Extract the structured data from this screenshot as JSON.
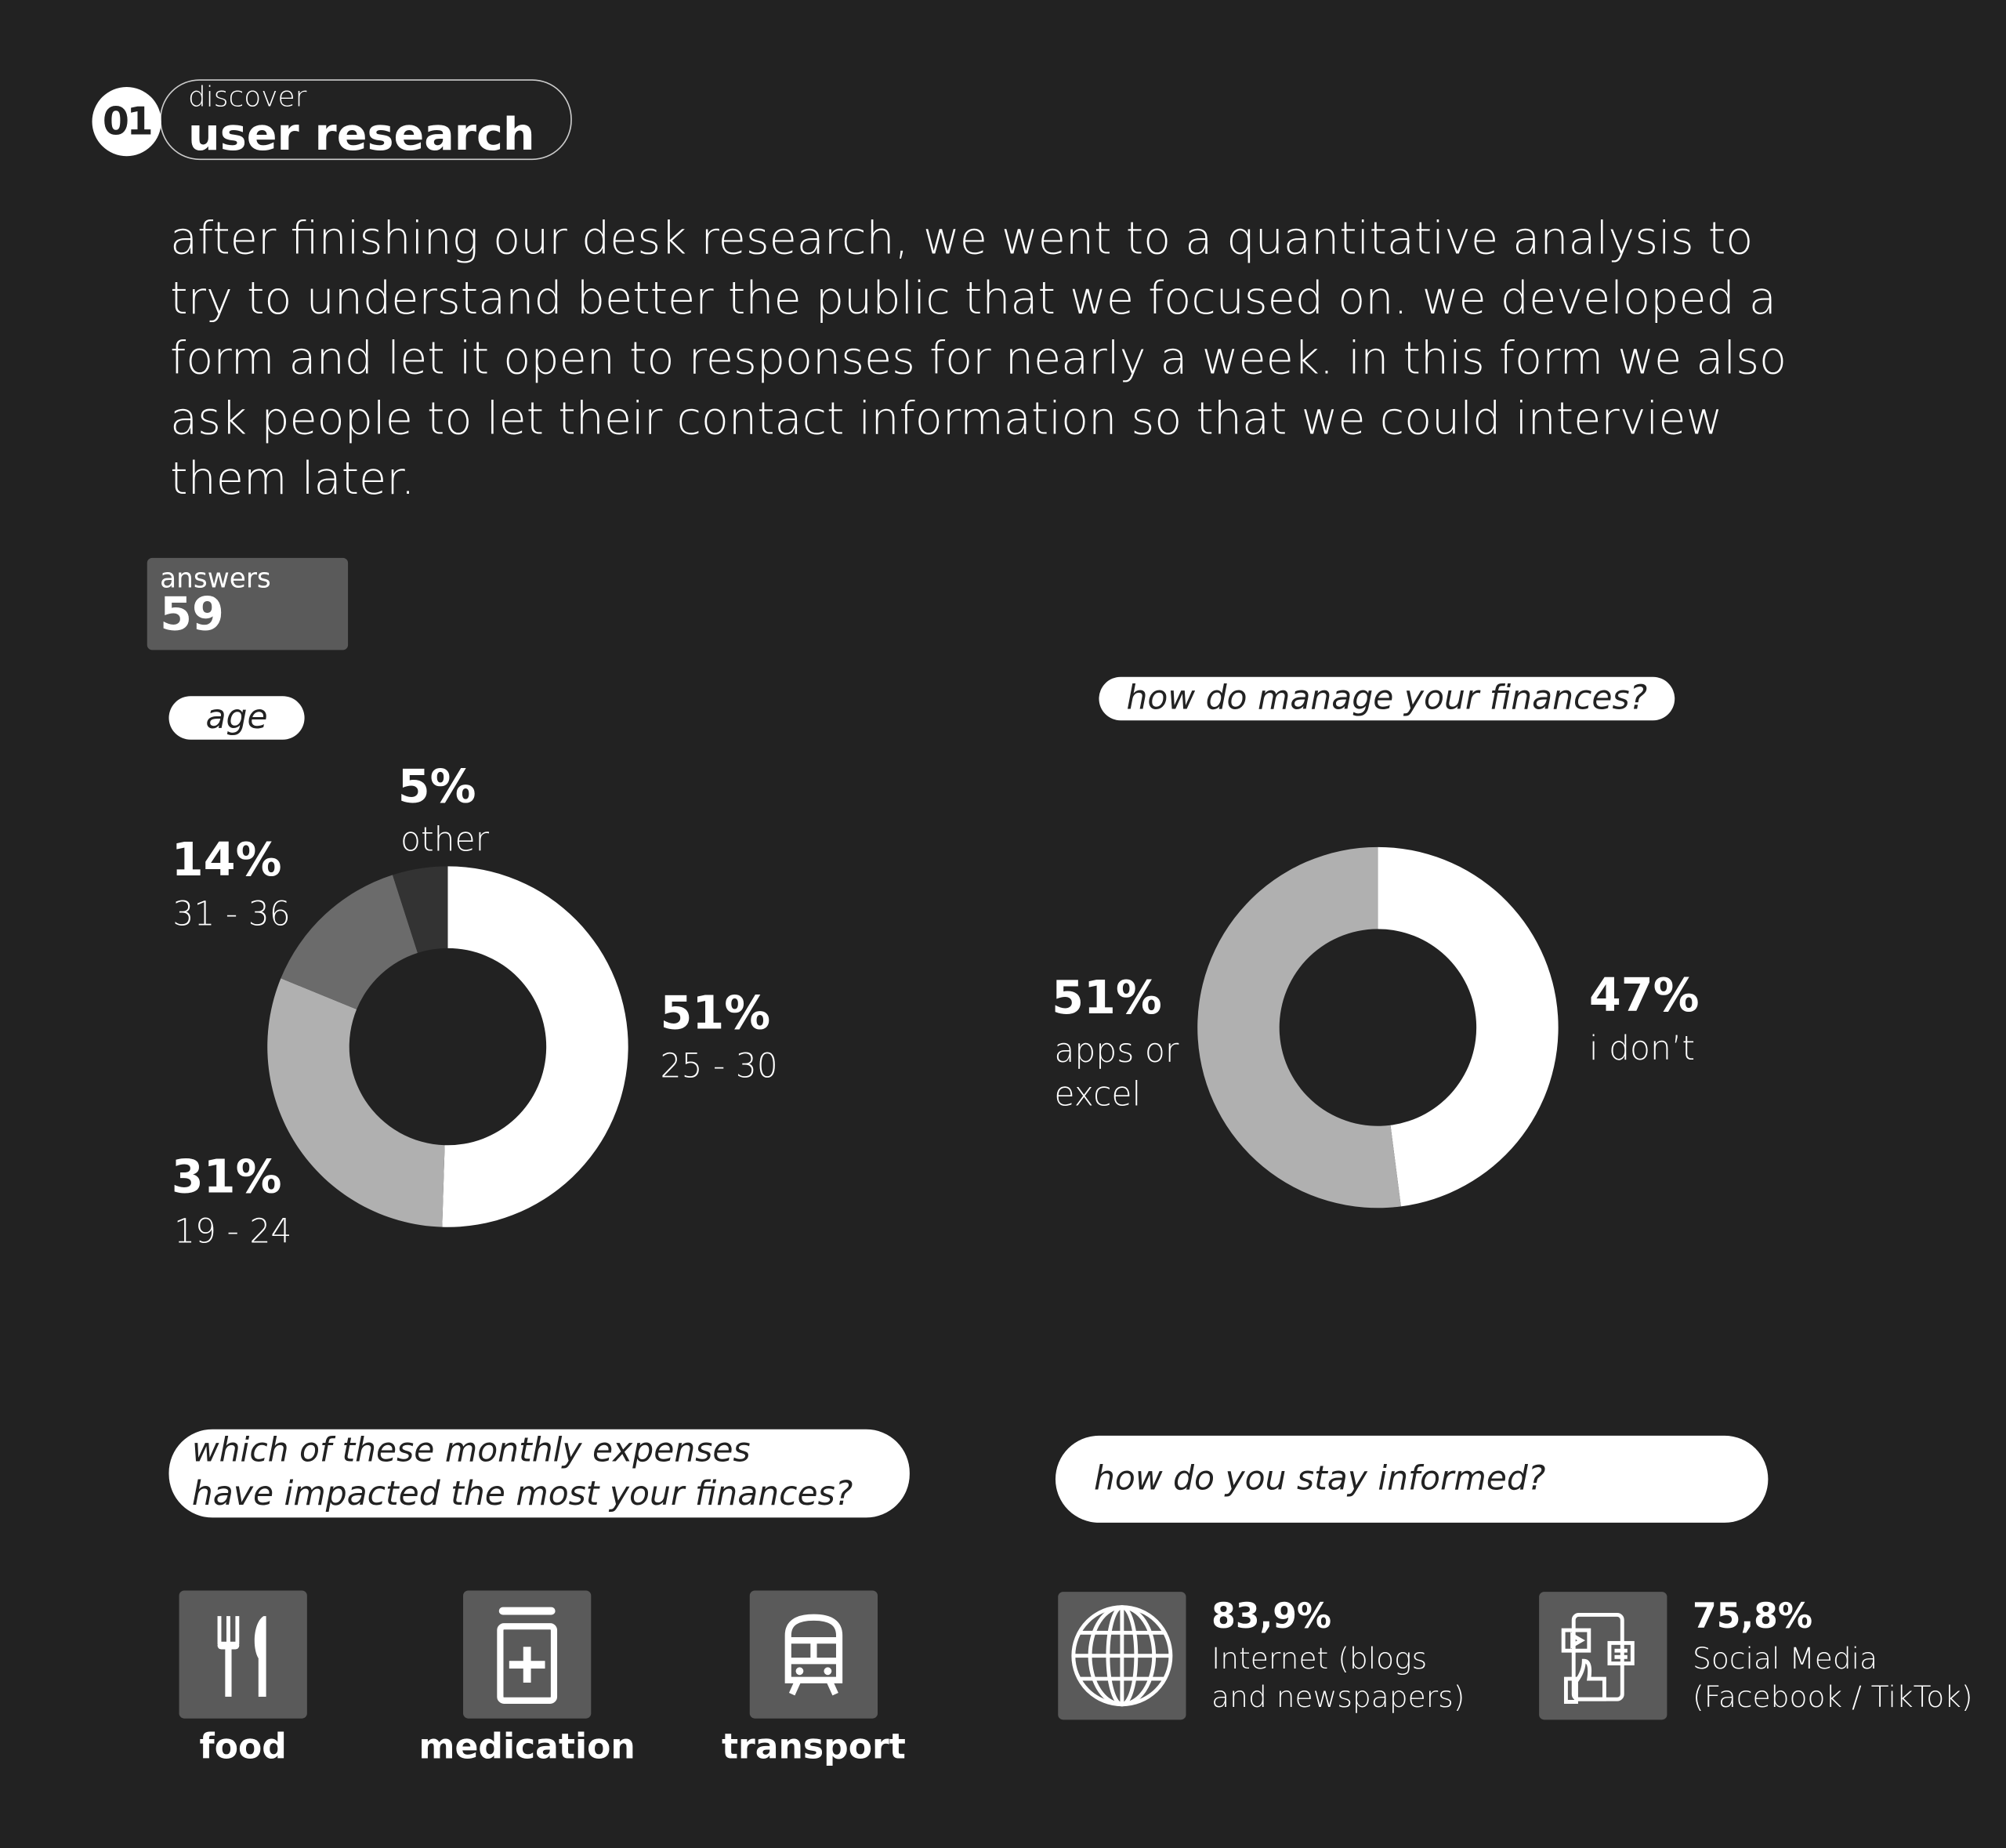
{
  "header": {
    "number": "01",
    "kicker": "discover",
    "title": "user research"
  },
  "intro": "after finishing our desk research, we went to a quantitative analysis to try to understand better the public that we focused on. we developed a form and let it open to responses for nearly a week. in this form we also ask people to let their contact information so that we could interview them later.",
  "answers": {
    "label": "answers",
    "value": "59"
  },
  "chart_data": [
    {
      "type": "pie",
      "title": "age",
      "donut": true,
      "slices": [
        {
          "label": "25 - 30",
          "value": 51,
          "display": "51%",
          "color": "#ffffff"
        },
        {
          "label": "19 - 24",
          "value": 31,
          "display": "31%",
          "color": "#b0b0b0"
        },
        {
          "label": "31 - 36",
          "value": 14,
          "display": "14%",
          "color": "#6b6b6b"
        },
        {
          "label": "other",
          "value": 5,
          "display": "5%",
          "color": "#333333"
        }
      ]
    },
    {
      "type": "pie",
      "title": "how do manage your finances?",
      "donut": true,
      "slices": [
        {
          "label": "i don’t",
          "value": 47,
          "display": "47%",
          "color": "#ffffff"
        },
        {
          "label": "apps or excel",
          "label_lines": [
            "apps or",
            "excel"
          ],
          "value": 51,
          "display": "51%",
          "color": "#b0b0b0"
        }
      ]
    }
  ],
  "expenses": {
    "question_lines": [
      "which of these monthly expenses",
      "have impacted the most your finances?"
    ],
    "items": [
      {
        "label": "food",
        "icon": "fork-knife-icon"
      },
      {
        "label": "medication",
        "icon": "medicine-box-icon"
      },
      {
        "label": "transport",
        "icon": "train-icon"
      }
    ]
  },
  "informed": {
    "question": "how do you stay informed?",
    "items": [
      {
        "value": "83,9%",
        "lines": [
          "Internet (blogs",
          "and newspapers)"
        ],
        "icon": "globe-icon"
      },
      {
        "value": "75,8%",
        "lines": [
          "Social Media",
          "(Facebook / TikTok)"
        ],
        "icon": "social-media-phone-icon"
      }
    ]
  }
}
